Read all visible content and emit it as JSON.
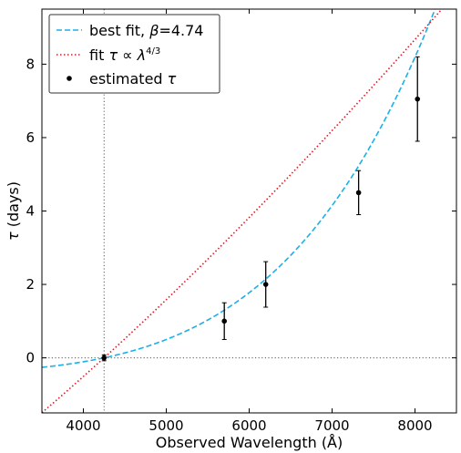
{
  "chart_data": {
    "type": "line",
    "xlabel": "Observed Wavelength (Å)",
    "ylabel_symbol": "τ",
    "ylabel_unit": " (days)",
    "xlim": [
      3500,
      8500
    ],
    "ylim": [
      -1.5,
      9.5
    ],
    "xticks": [
      4000,
      5000,
      6000,
      7000,
      8000
    ],
    "yticks": [
      0,
      2,
      4,
      6,
      8
    ],
    "reference_lines": {
      "x": 4250,
      "y": 0,
      "style": "dotted",
      "color": "#555555"
    },
    "legend": {
      "position": "upper-left",
      "entries": [
        {
          "key": "best_fit",
          "parts": [
            "best fit, ",
            "β",
            "=4.74"
          ]
        },
        {
          "key": "power_fit",
          "parts": [
            "fit ",
            "τ ∝ λ",
            "4/3"
          ]
        },
        {
          "key": "estimated",
          "parts": [
            "estimated ",
            "τ"
          ]
        }
      ]
    },
    "series": [
      {
        "name": "best fit, β=4.74",
        "kind": "dashed-line",
        "color": "#1ab0e8",
        "model": {
          "form": "A*((x/x0)^beta - 1)",
          "x0": 4250,
          "beta": 4.74,
          "A": 0.43
        }
      },
      {
        "name": "fit τ ∝ λ^4/3",
        "kind": "dotted-line",
        "color": "#e8141e",
        "model": {
          "form": "A*((x/x0)^beta - 1)",
          "x0": 4250,
          "beta": 1.3333,
          "A": 6.55
        }
      },
      {
        "name": "estimated τ",
        "kind": "points-with-errorbars",
        "color": "#000000",
        "points": [
          {
            "x": 4250,
            "y": 0.0,
            "err": 0.08
          },
          {
            "x": 5700,
            "y": 1.0,
            "err": 0.5
          },
          {
            "x": 6200,
            "y": 2.0,
            "err": 0.62
          },
          {
            "x": 7320,
            "y": 4.5,
            "err": 0.6
          },
          {
            "x": 8030,
            "y": 7.05,
            "err": 1.15
          }
        ]
      }
    ]
  }
}
